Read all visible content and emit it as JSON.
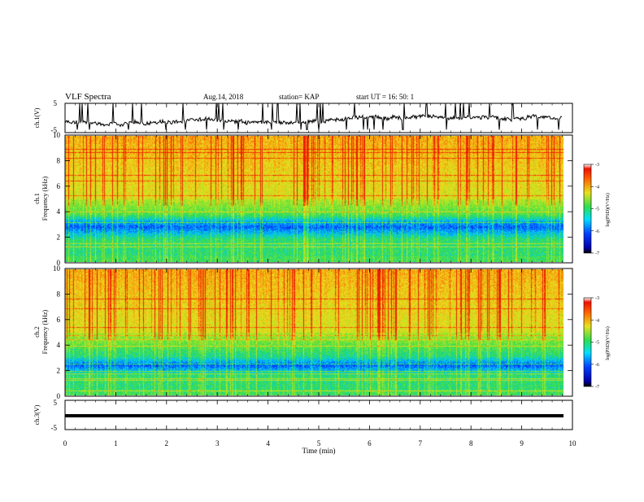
{
  "header": {
    "title": "VLF Spectra",
    "date": "Aug.14, 2018",
    "station": "station= KAP",
    "start_time": "start  UT =   16: 50: 1"
  },
  "chart_data": {
    "type": "heatmap",
    "x_axis": {
      "label": "Time (min)",
      "range": [
        0,
        10
      ],
      "ticks": [
        "0",
        "1",
        "2",
        "3",
        "4",
        "5",
        "6",
        "7",
        "8",
        "9",
        "10"
      ]
    },
    "panels": [
      {
        "name": "ch1-waveform",
        "type": "line",
        "ylabel": "ch.1(V)",
        "ylim": [
          -5,
          5
        ],
        "yticks": [
          "5",
          "-5"
        ],
        "data_xrange": [
          0,
          9.8
        ]
      },
      {
        "name": "ch1-spectrogram",
        "type": "heatmap",
        "ylabel_top": "ch.1",
        "ylabel": "Frequency (kHz)",
        "ylim": [
          0,
          10
        ],
        "yticks": [
          "0",
          "2",
          "4",
          "6",
          "8",
          "10"
        ],
        "colorbar": {
          "label": "log(PSD)(V²/Hz)",
          "range": [
            -7,
            -3
          ],
          "ticks": [
            "-3",
            "-4",
            "-5",
            "-6",
            "-7"
          ]
        }
      },
      {
        "name": "ch2-spectrogram",
        "type": "heatmap",
        "ylabel_top": "ch.2",
        "ylabel": "Frequency (kHz)",
        "ylim": [
          0,
          10
        ],
        "yticks": [
          "0",
          "2",
          "4",
          "6",
          "8",
          "10"
        ],
        "colorbar": {
          "label": "log(PSD)(V²/Hz)",
          "range": [
            -7,
            -3
          ],
          "ticks": [
            "-3",
            "-4",
            "-5",
            "-6",
            "-7"
          ]
        }
      },
      {
        "name": "ch3-waveform",
        "type": "line",
        "ylabel": "ch.3(V)",
        "ylim": [
          -5,
          5
        ],
        "yticks": [
          "5",
          "-5"
        ],
        "constant_value": 0
      }
    ],
    "colors": {
      "low": "#0000aa",
      "mid_low": "#00e0ff",
      "mid": "#33dd55",
      "mid_high": "#e8e020",
      "high": "#ee2200"
    }
  }
}
